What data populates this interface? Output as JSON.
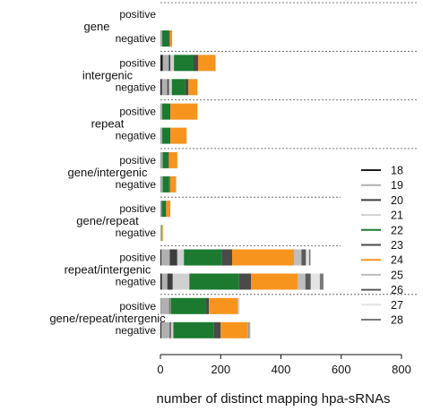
{
  "chart_data": {
    "type": "bar",
    "orientation": "horizontal",
    "stacked": true,
    "xlabel": "number of distinct mapping hpa-sRNAs",
    "xlim": [
      0,
      800
    ],
    "xticks": [
      0,
      200,
      400,
      600,
      800
    ],
    "groups": [
      "gene",
      "intergenic",
      "repeat",
      "gene/intergenic",
      "gene/repeat",
      "repeat/intergenic",
      "gene/repeat/intergenic"
    ],
    "strands": [
      "positive",
      "negative"
    ],
    "legend_title": "",
    "legend_position": "right",
    "series": [
      {
        "name": "18",
        "color": "#1e1e1e"
      },
      {
        "name": "19",
        "color": "#b0b0b0"
      },
      {
        "name": "20",
        "color": "#3d3d3d"
      },
      {
        "name": "21",
        "color": "#d0d0d0"
      },
      {
        "name": "22",
        "color": "#1b7a30"
      },
      {
        "name": "23",
        "color": "#4a4a4a"
      },
      {
        "name": "24",
        "color": "#f7941d"
      },
      {
        "name": "25",
        "color": "#bdbdbd"
      },
      {
        "name": "26",
        "color": "#5a5a5a"
      },
      {
        "name": "27",
        "color": "#e4e4e4"
      },
      {
        "name": "28",
        "color": "#7a7a7a"
      }
    ],
    "bars": [
      {
        "group": "gene",
        "strand": "positive",
        "values": [
          0,
          0,
          0,
          0,
          0,
          0,
          0,
          0,
          0,
          0,
          0
        ]
      },
      {
        "group": "gene",
        "strand": "negative",
        "values": [
          1,
          2,
          1,
          2,
          22,
          3,
          8,
          0,
          0,
          0,
          0
        ]
      },
      {
        "group": "intergenic",
        "strand": "positive",
        "values": [
          8,
          20,
          5,
          12,
          65,
          15,
          58,
          0,
          0,
          0,
          0
        ]
      },
      {
        "group": "intergenic",
        "strand": "negative",
        "values": [
          5,
          18,
          5,
          10,
          45,
          10,
          30,
          0,
          0,
          0,
          0
        ]
      },
      {
        "group": "repeat",
        "strand": "positive",
        "values": [
          1,
          2,
          1,
          2,
          24,
          3,
          90,
          0,
          0,
          0,
          0
        ]
      },
      {
        "group": "repeat",
        "strand": "negative",
        "values": [
          1,
          2,
          1,
          2,
          24,
          3,
          54,
          0,
          0,
          0,
          0
        ]
      },
      {
        "group": "gene/intergenic",
        "strand": "positive",
        "values": [
          1,
          3,
          1,
          2,
          18,
          3,
          28,
          0,
          0,
          0,
          0
        ]
      },
      {
        "group": "gene/intergenic",
        "strand": "negative",
        "values": [
          1,
          3,
          1,
          2,
          22,
          3,
          20,
          0,
          0,
          0,
          0
        ]
      },
      {
        "group": "gene/repeat",
        "strand": "positive",
        "values": [
          0,
          2,
          1,
          1,
          14,
          1,
          14,
          0,
          0,
          0,
          0
        ]
      },
      {
        "group": "gene/repeat",
        "strand": "negative",
        "values": [
          0,
          1,
          0,
          1,
          2,
          0,
          4,
          0,
          0,
          0,
          0
        ]
      },
      {
        "group": "repeat/intergenic",
        "strand": "positive",
        "values": [
          3,
          28,
          25,
          22,
          125,
          35,
          205,
          25,
          15,
          10,
          5
        ]
      },
      {
        "group": "repeat/intergenic",
        "strand": "negative",
        "values": [
          5,
          18,
          18,
          55,
          165,
          40,
          155,
          25,
          18,
          30,
          12
        ]
      },
      {
        "group": "gene/repeat/intergenic",
        "strand": "positive",
        "values": [
          1,
          28,
          3,
          2,
          115,
          12,
          95,
          1,
          1,
          3,
          1
        ]
      },
      {
        "group": "gene/repeat/intergenic",
        "strand": "negative",
        "values": [
          3,
          28,
          4,
          8,
          135,
          22,
          90,
          2,
          2,
          2,
          2
        ]
      }
    ]
  }
}
